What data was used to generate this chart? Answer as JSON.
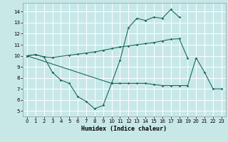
{
  "background_color": "#c8e8e8",
  "grid_color": "#ffffff",
  "line_color": "#1a6b5a",
  "xlabel": "Humidex (Indice chaleur)",
  "xlim": [
    -0.5,
    23.5
  ],
  "ylim": [
    4.5,
    14.8
  ],
  "yticks": [
    5,
    6,
    7,
    8,
    9,
    10,
    11,
    12,
    13,
    14
  ],
  "xticks": [
    0,
    1,
    2,
    3,
    4,
    5,
    6,
    7,
    8,
    9,
    10,
    11,
    12,
    13,
    14,
    15,
    16,
    17,
    18,
    19,
    20,
    21,
    22,
    23
  ],
  "line1_x": [
    0,
    1,
    2,
    3,
    5,
    6,
    7,
    8,
    9,
    10,
    11,
    12,
    13,
    14,
    15,
    16,
    17,
    18,
    19
  ],
  "line1_y": [
    10.0,
    10.1,
    9.9,
    9.85,
    10.05,
    10.15,
    10.25,
    10.35,
    10.5,
    10.65,
    10.8,
    10.9,
    11.0,
    11.1,
    11.2,
    11.35,
    11.5,
    11.55,
    9.8
  ],
  "line2_x": [
    0,
    1,
    2,
    3,
    4,
    5,
    6,
    7,
    8,
    9,
    10,
    11,
    12,
    13,
    14,
    15,
    16,
    17,
    18
  ],
  "line2_y": [
    10.0,
    10.1,
    9.9,
    8.5,
    7.8,
    7.5,
    6.3,
    5.85,
    5.2,
    5.5,
    7.5,
    9.6,
    12.55,
    13.4,
    13.2,
    13.5,
    13.4,
    14.2,
    13.5
  ],
  "line3_x": [
    0,
    10,
    11,
    12,
    13,
    14,
    15,
    16,
    17,
    18,
    19,
    20,
    21,
    22,
    23
  ],
  "line3_y": [
    10.0,
    7.5,
    7.5,
    7.5,
    7.5,
    7.5,
    7.4,
    7.3,
    7.3,
    7.3,
    7.3,
    9.8,
    8.5,
    7.0,
    7.0
  ]
}
